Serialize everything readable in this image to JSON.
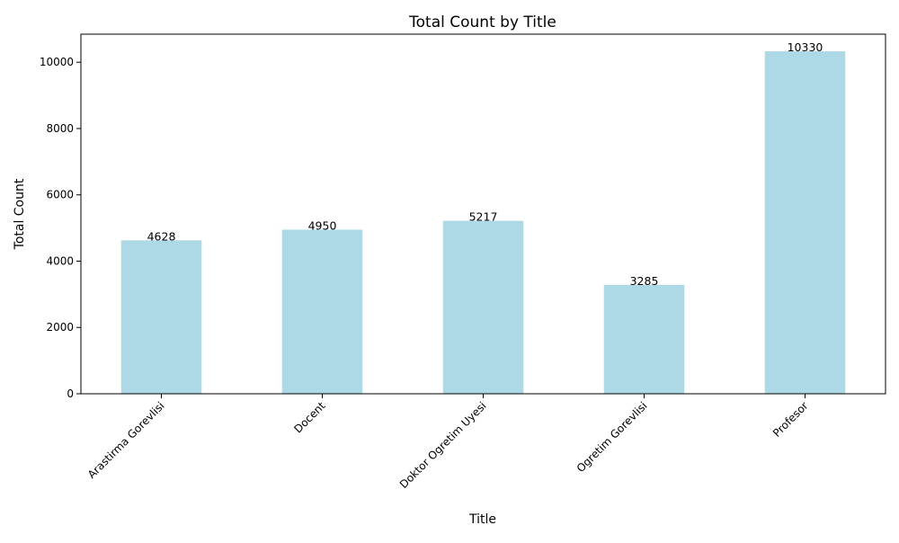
{
  "chart_data": {
    "type": "bar",
    "title": "Total Count by Title",
    "xlabel": "Title",
    "ylabel": "Total Count",
    "categories": [
      "Arastirma Gorevlisi",
      "Docent",
      "Doktor Ogretim Uyesi",
      "Ogretim Gorevlisi",
      "Profesor"
    ],
    "values": [
      4628,
      4950,
      5217,
      3285,
      10330
    ],
    "data_labels": [
      "4628",
      "4950",
      "5217",
      "3285",
      "10330"
    ],
    "yticks": [
      0,
      2000,
      4000,
      6000,
      8000,
      10000
    ],
    "ylim": [
      0,
      10846.5
    ],
    "bar_color": "#add8e6",
    "grid": false,
    "legend": "none"
  }
}
